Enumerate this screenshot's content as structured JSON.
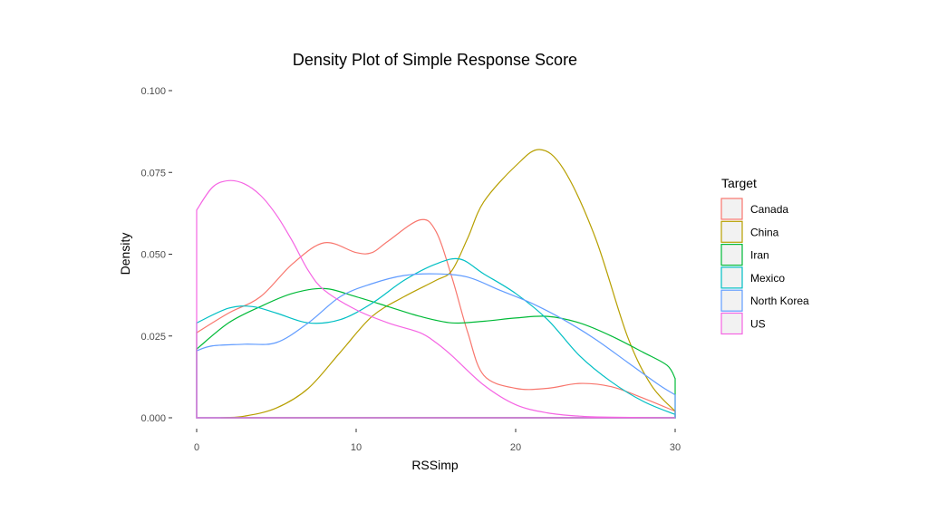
{
  "chart_data": {
    "type": "line",
    "title": "Density Plot of Simple Response Score",
    "xlabel": "RSSimp",
    "ylabel": "Density",
    "xlim": [
      0,
      30
    ],
    "ylim": [
      0,
      0.1
    ],
    "x_ticks": [
      0,
      10,
      20,
      30
    ],
    "x_tick_labels": [
      "0",
      "10",
      "20",
      "30"
    ],
    "y_ticks": [
      0,
      0.025,
      0.05,
      0.075,
      0.1
    ],
    "y_tick_labels": [
      "0.000",
      "0.025",
      "0.050",
      "0.075",
      "0.100"
    ],
    "grid": false,
    "legend": {
      "title": "Target",
      "position": "right"
    },
    "series": [
      {
        "name": "Canada",
        "color": "#F8766D",
        "points": [
          [
            0,
            0.026
          ],
          [
            2,
            0.032
          ],
          [
            4,
            0.037
          ],
          [
            6,
            0.047
          ],
          [
            8,
            0.0535
          ],
          [
            10,
            0.0505
          ],
          [
            11,
            0.0505
          ],
          [
            12,
            0.054
          ],
          [
            14,
            0.0605
          ],
          [
            15,
            0.057
          ],
          [
            16,
            0.043
          ],
          [
            17,
            0.026
          ],
          [
            18,
            0.013
          ],
          [
            20,
            0.009
          ],
          [
            22,
            0.009
          ],
          [
            24,
            0.0105
          ],
          [
            26,
            0.0095
          ],
          [
            28,
            0.006
          ],
          [
            30,
            0.002
          ]
        ]
      },
      {
        "name": "China",
        "color": "#B79F00",
        "points": [
          [
            1.5,
            0
          ],
          [
            3,
            0.0005
          ],
          [
            5,
            0.003
          ],
          [
            7,
            0.009
          ],
          [
            9,
            0.02
          ],
          [
            11,
            0.031
          ],
          [
            13,
            0.037
          ],
          [
            15,
            0.042
          ],
          [
            16,
            0.045
          ],
          [
            17,
            0.055
          ],
          [
            18,
            0.066
          ],
          [
            20,
            0.077
          ],
          [
            21.5,
            0.082
          ],
          [
            23,
            0.076
          ],
          [
            25,
            0.055
          ],
          [
            27,
            0.025
          ],
          [
            28.5,
            0.01
          ],
          [
            30,
            0.002
          ]
        ]
      },
      {
        "name": "Iran",
        "color": "#00BA38",
        "points": [
          [
            0,
            0.021
          ],
          [
            2,
            0.029
          ],
          [
            4,
            0.034
          ],
          [
            6,
            0.038
          ],
          [
            8,
            0.0395
          ],
          [
            10,
            0.037
          ],
          [
            12,
            0.034
          ],
          [
            14,
            0.031
          ],
          [
            16,
            0.029
          ],
          [
            18,
            0.0295
          ],
          [
            20,
            0.0305
          ],
          [
            22,
            0.031
          ],
          [
            24,
            0.029
          ],
          [
            26,
            0.025
          ],
          [
            28,
            0.02
          ],
          [
            29.5,
            0.016
          ],
          [
            30,
            0.012
          ]
        ]
      },
      {
        "name": "Mexico",
        "color": "#00BFC4",
        "points": [
          [
            0,
            0.029
          ],
          [
            2,
            0.0335
          ],
          [
            3.5,
            0.034
          ],
          [
            5,
            0.032
          ],
          [
            7,
            0.029
          ],
          [
            9,
            0.03
          ],
          [
            11,
            0.035
          ],
          [
            13,
            0.042
          ],
          [
            15,
            0.047
          ],
          [
            16.5,
            0.0485
          ],
          [
            18,
            0.044
          ],
          [
            20,
            0.038
          ],
          [
            22,
            0.03
          ],
          [
            24,
            0.019
          ],
          [
            26,
            0.011
          ],
          [
            28,
            0.005
          ],
          [
            30,
            0.001
          ]
        ]
      },
      {
        "name": "North Korea",
        "color": "#619CFF",
        "points": [
          [
            0,
            0.0205
          ],
          [
            1,
            0.022
          ],
          [
            3,
            0.0225
          ],
          [
            5,
            0.023
          ],
          [
            7,
            0.029
          ],
          [
            9,
            0.037
          ],
          [
            11,
            0.041
          ],
          [
            13,
            0.0435
          ],
          [
            15,
            0.044
          ],
          [
            17,
            0.043
          ],
          [
            19,
            0.039
          ],
          [
            21,
            0.035
          ],
          [
            23,
            0.03
          ],
          [
            25,
            0.024
          ],
          [
            27,
            0.017
          ],
          [
            29,
            0.01
          ],
          [
            30,
            0.007
          ]
        ]
      },
      {
        "name": "US",
        "color": "#F564E3",
        "points": [
          [
            0,
            0.0635
          ],
          [
            1,
            0.0705
          ],
          [
            2,
            0.0725
          ],
          [
            3,
            0.0715
          ],
          [
            4,
            0.068
          ],
          [
            5,
            0.062
          ],
          [
            6,
            0.054
          ],
          [
            7,
            0.045
          ],
          [
            8,
            0.039
          ],
          [
            10,
            0.033
          ],
          [
            12,
            0.029
          ],
          [
            14,
            0.026
          ],
          [
            15,
            0.023
          ],
          [
            16,
            0.019
          ],
          [
            18,
            0.01
          ],
          [
            20,
            0.004
          ],
          [
            22,
            0.0015
          ],
          [
            24,
            0.0005
          ],
          [
            26,
            0.0002
          ],
          [
            30,
            0
          ]
        ]
      }
    ]
  }
}
